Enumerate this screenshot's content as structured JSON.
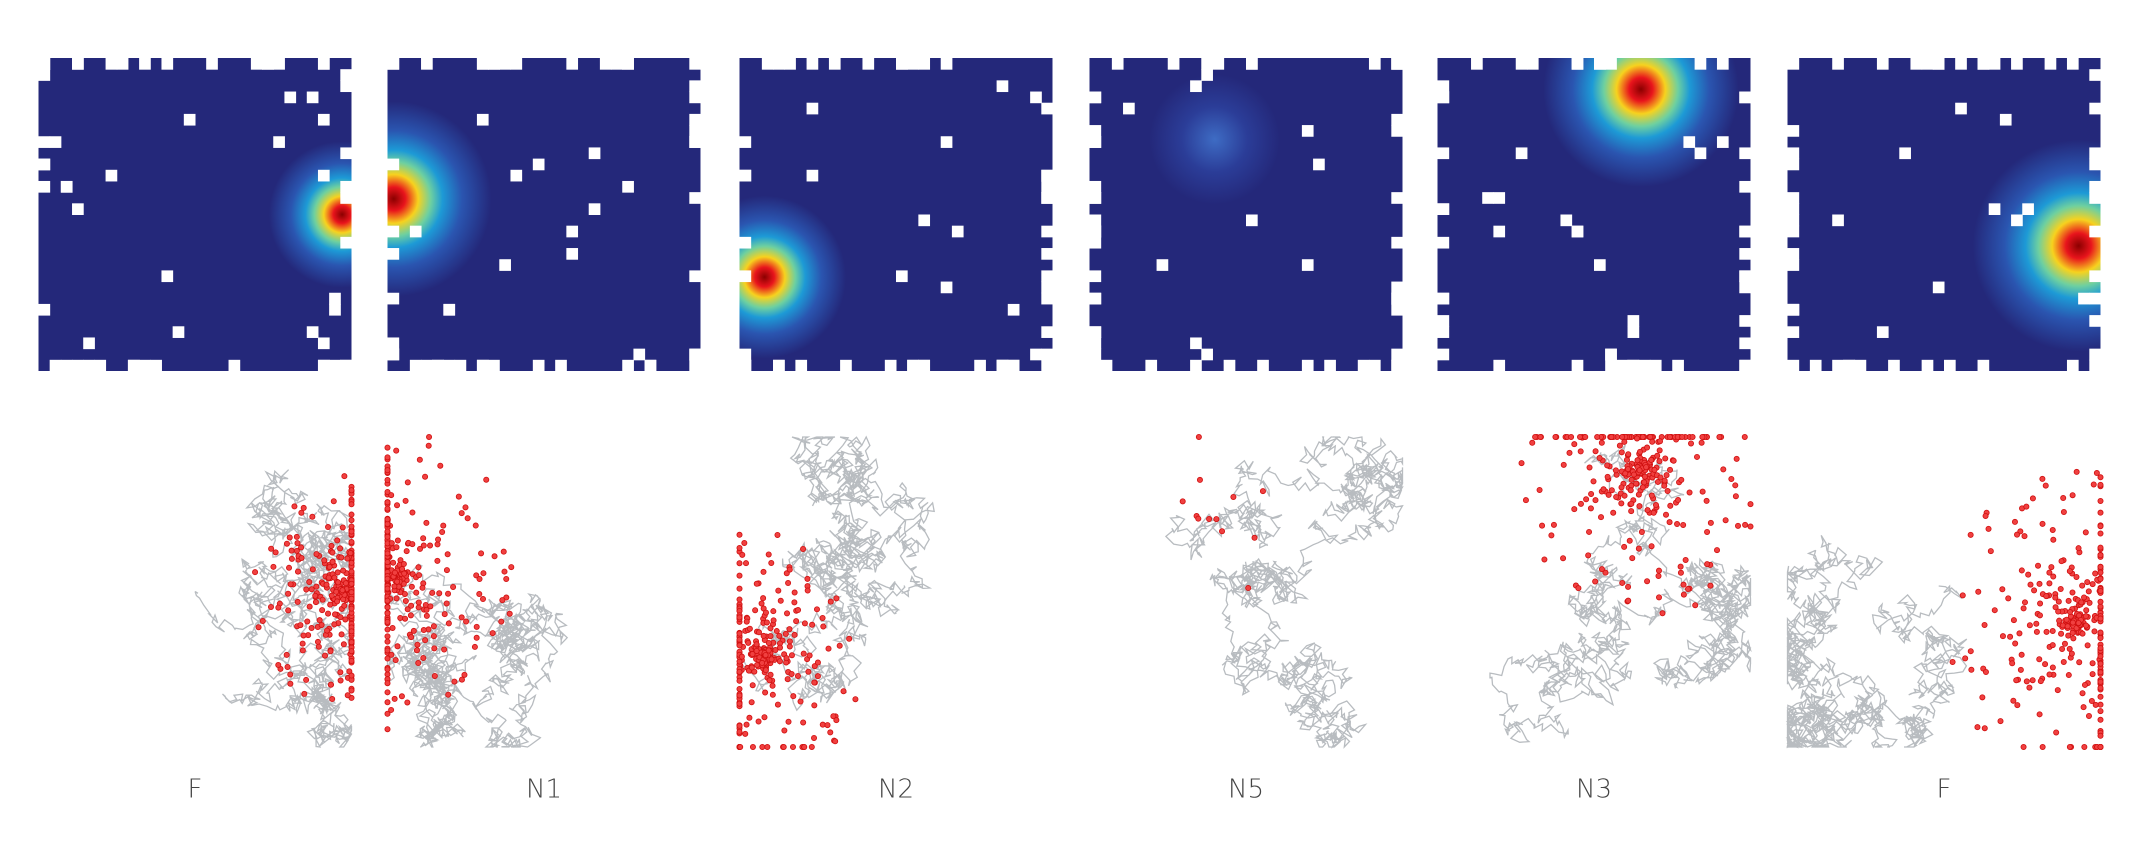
{
  "panels": [
    {
      "label": "F"
    },
    {
      "label": "N1"
    },
    {
      "label": "N2"
    },
    {
      "label": "N5"
    },
    {
      "label": "N3"
    },
    {
      "label": "F"
    }
  ]
}
